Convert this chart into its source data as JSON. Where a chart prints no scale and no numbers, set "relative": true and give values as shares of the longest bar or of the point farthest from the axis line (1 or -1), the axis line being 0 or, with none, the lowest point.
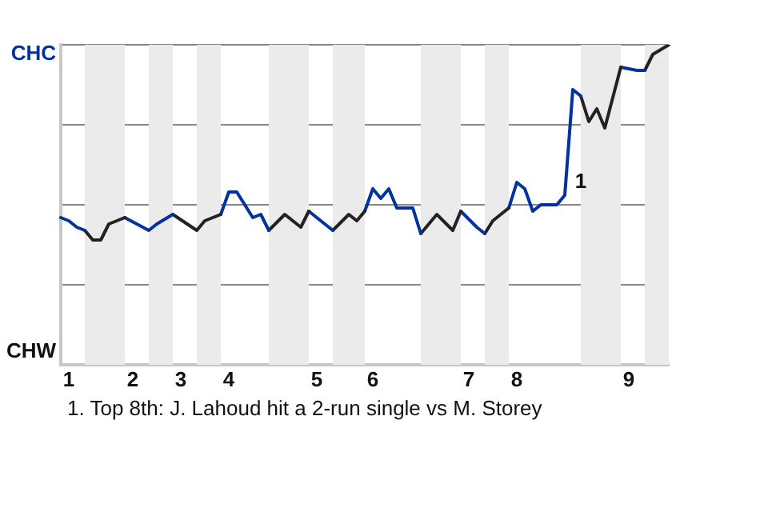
{
  "chart_data": {
    "type": "line",
    "categories": [
      null,
      "1",
      null,
      null,
      null,
      null,
      null,
      null,
      null,
      "2",
      null,
      null,
      null,
      null,
      null,
      "3",
      null,
      null,
      null,
      null,
      null,
      "4",
      null,
      null,
      null,
      null,
      null,
      null,
      null,
      null,
      null,
      null,
      "5",
      null,
      null,
      null,
      null,
      null,
      null,
      "6",
      null,
      null,
      null,
      null,
      null,
      null,
      null,
      null,
      null,
      null,
      null,
      "7",
      null,
      null,
      null,
      null,
      null,
      "8",
      null,
      null,
      null,
      null,
      null,
      null,
      null,
      null,
      null,
      null,
      null,
      null,
      null,
      "9",
      null,
      null,
      null,
      null,
      null
    ],
    "relative": true,
    "series": [
      {
        "color": "#0033a0",
        "values": [
          0.46,
          0.45,
          0.43,
          0.42,
          null,
          null,
          null,
          null,
          null,
          null,
          null,
          null,
          null,
          null,
          null,
          null,
          null,
          null,
          null,
          null,
          null,
          null,
          null,
          null,
          null,
          null,
          null,
          null,
          null,
          null,
          null,
          null,
          null,
          null,
          null,
          null,
          null,
          null,
          null,
          null,
          null,
          null,
          null,
          null,
          null,
          null,
          null,
          null,
          null,
          null,
          null,
          null,
          null,
          null,
          null,
          null,
          null,
          null,
          null,
          null,
          null,
          null,
          null,
          null,
          null,
          null,
          null,
          null,
          null,
          null,
          null,
          null,
          null,
          null,
          null,
          null,
          null
        ]
      },
      {
        "color": "#222222",
        "values": [
          null,
          null,
          null,
          0.42,
          0.39,
          0.39,
          0.44,
          null,
          0.46,
          null,
          null,
          null,
          null,
          null,
          null,
          null,
          null,
          null,
          null,
          null,
          null,
          null,
          null,
          null,
          null,
          null,
          null,
          null,
          null,
          null,
          null,
          null,
          null,
          null,
          null,
          null,
          null,
          null,
          null,
          null,
          null,
          null,
          null,
          null,
          null,
          null,
          null,
          null,
          null,
          null,
          null,
          null,
          null,
          null,
          null,
          null,
          null,
          null,
          null,
          null,
          null,
          null,
          null,
          null,
          null,
          null,
          null,
          null,
          null,
          null,
          null,
          null,
          null,
          null,
          null,
          null,
          null
        ]
      },
      {
        "color": "#0033a0",
        "values": [
          null,
          null,
          null,
          null,
          null,
          null,
          null,
          null,
          0.46,
          null,
          null,
          0.42,
          0.44,
          null,
          0.47,
          null,
          null,
          null,
          null,
          null,
          null,
          null,
          null,
          null,
          null,
          null,
          null,
          null,
          null,
          null,
          null,
          null,
          null,
          null,
          null,
          null,
          null,
          null,
          null,
          null,
          null,
          null,
          null,
          null,
          null,
          null,
          null,
          null,
          null,
          null,
          null,
          null,
          null,
          null,
          null,
          null,
          null,
          null,
          null,
          null,
          null,
          null,
          null,
          null,
          null,
          null,
          null,
          null,
          null,
          null,
          null,
          null,
          null,
          null,
          null,
          null,
          null
        ]
      },
      {
        "color": "#222222",
        "values": [
          null,
          null,
          null,
          null,
          null,
          null,
          null,
          null,
          null,
          null,
          null,
          null,
          null,
          null,
          0.47,
          null,
          null,
          0.42,
          0.45,
          null,
          0.47,
          null,
          null,
          null,
          null,
          null,
          null,
          null,
          null,
          null,
          null,
          null,
          null,
          null,
          null,
          null,
          null,
          null,
          null,
          null,
          null,
          null,
          null,
          null,
          null,
          null,
          null,
          null,
          null,
          null,
          null,
          null,
          null,
          null,
          null,
          null,
          null,
          null,
          null,
          null,
          null,
          null,
          null,
          null,
          null,
          null,
          null,
          null,
          null,
          null,
          null,
          null,
          null,
          null,
          null,
          null,
          null
        ]
      },
      {
        "color": "#0033a0",
        "values": [
          null,
          null,
          null,
          null,
          null,
          null,
          null,
          null,
          null,
          null,
          null,
          null,
          null,
          null,
          null,
          null,
          null,
          null,
          null,
          null,
          0.47,
          0.54,
          0.54,
          null,
          0.46,
          0.47,
          0.42,
          null,
          null,
          null,
          null,
          null,
          null,
          null,
          null,
          null,
          null,
          null,
          null,
          null,
          null,
          null,
          null,
          null,
          null,
          null,
          null,
          null,
          null,
          null,
          null,
          null,
          null,
          null,
          null,
          null,
          null,
          null,
          null,
          null,
          null,
          null,
          null,
          null,
          null,
          null,
          null,
          null,
          null,
          null,
          null,
          null,
          null,
          null,
          null,
          null,
          null
        ]
      },
      {
        "color": "#222222",
        "values": [
          null,
          null,
          null,
          null,
          null,
          null,
          null,
          null,
          null,
          null,
          null,
          null,
          null,
          null,
          null,
          null,
          null,
          null,
          null,
          null,
          null,
          null,
          null,
          null,
          null,
          null,
          0.42,
          null,
          0.47,
          null,
          0.43,
          0.48,
          null,
          null,
          null,
          null,
          null,
          null,
          null,
          null,
          null,
          null,
          null,
          null,
          null,
          null,
          null,
          null,
          null,
          null,
          null,
          null,
          null,
          null,
          null,
          null,
          null,
          null,
          null,
          null,
          null,
          null,
          null,
          null,
          null,
          null,
          null,
          null,
          null,
          null,
          null,
          null,
          null,
          null,
          null,
          null,
          null
        ]
      },
      {
        "color": "#0033a0",
        "values": [
          null,
          null,
          null,
          null,
          null,
          null,
          null,
          null,
          null,
          null,
          null,
          null,
          null,
          null,
          null,
          null,
          null,
          null,
          null,
          null,
          null,
          null,
          null,
          null,
          null,
          null,
          null,
          null,
          null,
          null,
          null,
          0.48,
          null,
          null,
          0.42,
          null,
          null,
          null,
          null,
          null,
          null,
          null,
          null,
          null,
          null,
          null,
          null,
          null,
          null,
          null,
          null,
          null,
          null,
          null,
          null,
          null,
          null,
          null,
          null,
          null,
          null,
          null,
          null,
          null,
          null,
          null,
          null,
          null,
          null,
          null,
          null,
          null,
          null,
          null,
          null,
          null,
          null
        ]
      },
      {
        "color": "#222222",
        "values": [
          null,
          null,
          null,
          null,
          null,
          null,
          null,
          null,
          null,
          null,
          null,
          null,
          null,
          null,
          null,
          null,
          null,
          null,
          null,
          null,
          null,
          null,
          null,
          null,
          null,
          null,
          null,
          null,
          null,
          null,
          null,
          null,
          null,
          null,
          0.42,
          null,
          0.47,
          0.45,
          0.48,
          null,
          null,
          null,
          null,
          null,
          null,
          null,
          null,
          null,
          null,
          null,
          null,
          null,
          null,
          null,
          null,
          null,
          null,
          null,
          null,
          null,
          null,
          null,
          null,
          null,
          null,
          null,
          null,
          null,
          null,
          null,
          null,
          null,
          null,
          null,
          null,
          null,
          null
        ]
      },
      {
        "color": "#0033a0",
        "values": [
          null,
          null,
          null,
          null,
          null,
          null,
          null,
          null,
          null,
          null,
          null,
          null,
          null,
          null,
          null,
          null,
          null,
          null,
          null,
          null,
          null,
          null,
          null,
          null,
          null,
          null,
          null,
          null,
          null,
          null,
          null,
          null,
          null,
          null,
          null,
          null,
          null,
          null,
          0.48,
          0.55,
          0.52,
          0.55,
          0.49,
          null,
          0.49,
          0.41,
          null,
          null,
          null,
          null,
          null,
          null,
          null,
          null,
          null,
          null,
          null,
          null,
          null,
          null,
          null,
          null,
          null,
          null,
          null,
          null,
          null,
          null,
          null,
          null,
          null,
          null,
          null,
          null,
          null,
          null,
          null
        ]
      },
      {
        "color": "#222222",
        "values": [
          null,
          null,
          null,
          null,
          null,
          null,
          null,
          null,
          null,
          null,
          null,
          null,
          null,
          null,
          null,
          null,
          null,
          null,
          null,
          null,
          null,
          null,
          null,
          null,
          null,
          null,
          null,
          null,
          null,
          null,
          null,
          null,
          null,
          null,
          null,
          null,
          null,
          null,
          null,
          null,
          null,
          null,
          null,
          null,
          null,
          0.41,
          null,
          0.47,
          null,
          0.42,
          0.48,
          null,
          null,
          null,
          null,
          null,
          null,
          null,
          null,
          null,
          null,
          null,
          null,
          null,
          null,
          null,
          null,
          null,
          null,
          null,
          null,
          null,
          null,
          null,
          null,
          null,
          null
        ]
      },
      {
        "color": "#0033a0",
        "values": [
          null,
          null,
          null,
          null,
          null,
          null,
          null,
          null,
          null,
          null,
          null,
          null,
          null,
          null,
          null,
          null,
          null,
          null,
          null,
          null,
          null,
          null,
          null,
          null,
          null,
          null,
          null,
          null,
          null,
          null,
          null,
          null,
          null,
          null,
          null,
          null,
          null,
          null,
          null,
          null,
          null,
          null,
          null,
          null,
          null,
          null,
          null,
          null,
          null,
          null,
          0.48,
          null,
          0.43,
          0.41,
          null,
          null,
          null,
          null,
          null,
          null,
          null,
          null,
          null,
          null,
          null,
          null,
          null,
          null,
          null,
          null,
          null,
          null,
          null,
          null,
          null,
          null,
          null
        ]
      },
      {
        "color": "#222222",
        "values": [
          null,
          null,
          null,
          null,
          null,
          null,
          null,
          null,
          null,
          null,
          null,
          null,
          null,
          null,
          null,
          null,
          null,
          null,
          null,
          null,
          null,
          null,
          null,
          null,
          null,
          null,
          null,
          null,
          null,
          null,
          null,
          null,
          null,
          null,
          null,
          null,
          null,
          null,
          null,
          null,
          null,
          null,
          null,
          null,
          null,
          null,
          null,
          null,
          null,
          null,
          null,
          null,
          null,
          0.41,
          0.45,
          null,
          0.49,
          null,
          null,
          null,
          null,
          null,
          null,
          null,
          null,
          null,
          null,
          null,
          null,
          null,
          null,
          null,
          null,
          null,
          null,
          null,
          null
        ]
      },
      {
        "color": "#0033a0",
        "values": [
          null,
          null,
          null,
          null,
          null,
          null,
          null,
          null,
          null,
          null,
          null,
          null,
          null,
          null,
          null,
          null,
          null,
          null,
          null,
          null,
          null,
          null,
          null,
          null,
          null,
          null,
          null,
          null,
          null,
          null,
          null,
          null,
          null,
          null,
          null,
          null,
          null,
          null,
          null,
          null,
          null,
          null,
          null,
          null,
          null,
          null,
          null,
          null,
          null,
          null,
          null,
          null,
          null,
          null,
          null,
          null,
          0.49,
          0.57,
          0.55,
          0.48,
          0.5,
          null,
          0.5,
          0.53,
          0.86,
          0.84,
          null,
          null,
          null,
          null,
          null,
          null,
          null,
          null,
          null,
          null,
          null
        ]
      },
      {
        "color": "#222222",
        "values": [
          null,
          null,
          null,
          null,
          null,
          null,
          null,
          null,
          null,
          null,
          null,
          null,
          null,
          null,
          null,
          null,
          null,
          null,
          null,
          null,
          null,
          null,
          null,
          null,
          null,
          null,
          null,
          null,
          null,
          null,
          null,
          null,
          null,
          null,
          null,
          null,
          null,
          null,
          null,
          null,
          null,
          null,
          null,
          null,
          null,
          null,
          null,
          null,
          null,
          null,
          null,
          null,
          null,
          null,
          null,
          null,
          null,
          null,
          null,
          null,
          null,
          null,
          null,
          null,
          null,
          0.84,
          0.76,
          0.8,
          0.74,
          null,
          0.93,
          null,
          null,
          null,
          null,
          null,
          null
        ]
      },
      {
        "color": "#0033a0",
        "values": [
          null,
          null,
          null,
          null,
          null,
          null,
          null,
          null,
          null,
          null,
          null,
          null,
          null,
          null,
          null,
          null,
          null,
          null,
          null,
          null,
          null,
          null,
          null,
          null,
          null,
          null,
          null,
          null,
          null,
          null,
          null,
          null,
          null,
          null,
          null,
          null,
          null,
          null,
          null,
          null,
          null,
          null,
          null,
          null,
          null,
          null,
          null,
          null,
          null,
          null,
          null,
          null,
          null,
          null,
          null,
          null,
          null,
          null,
          null,
          null,
          null,
          null,
          null,
          null,
          null,
          null,
          null,
          null,
          null,
          null,
          0.93,
          null,
          0.92,
          0.92,
          null,
          null,
          null
        ]
      },
      {
        "color": "#222222",
        "values": [
          null,
          null,
          null,
          null,
          null,
          null,
          null,
          null,
          null,
          null,
          null,
          null,
          null,
          null,
          null,
          null,
          null,
          null,
          null,
          null,
          null,
          null,
          null,
          null,
          null,
          null,
          null,
          null,
          null,
          null,
          null,
          null,
          null,
          null,
          null,
          null,
          null,
          null,
          null,
          null,
          null,
          null,
          null,
          null,
          null,
          null,
          null,
          null,
          null,
          null,
          null,
          null,
          null,
          null,
          null,
          null,
          null,
          null,
          null,
          null,
          null,
          null,
          null,
          null,
          null,
          null,
          null,
          null,
          null,
          null,
          null,
          null,
          null,
          0.92,
          0.97,
          null,
          1
        ]
      }
    ],
    "annotations": [
      "CHC",
      "CHW",
      "1",
      "1. Top 8th: J. Lahoud hit a 2-run single vs M. Storey"
    ],
    "grid": "y",
    "legend": false,
    "marker": "none",
    "line_style": "solid"
  }
}
